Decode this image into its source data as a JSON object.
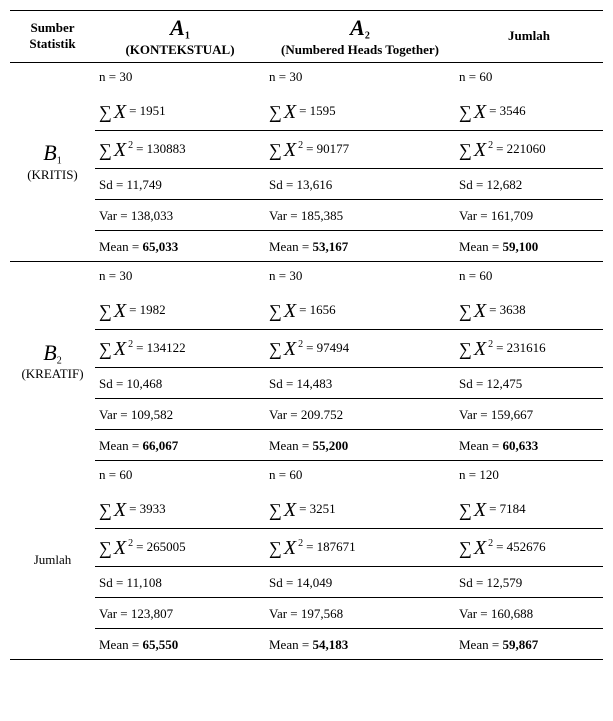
{
  "header": {
    "sumber_line1": "Sumber",
    "sumber_line2": "Statistik",
    "a1_symbol": "A",
    "a1_sub": "1",
    "a1_label": "(KONTEKSTUAL)",
    "a2_symbol": "A",
    "a2_sub": "2",
    "a2_label": "(Numbered Heads Together)",
    "jumlah": "Jumlah"
  },
  "b1": {
    "symbol": "B",
    "sub": "1",
    "label": "(KRITIS)",
    "a1": {
      "n": "n = 30",
      "sx": "= 1951",
      "sx2": "= 130883",
      "sd": "Sd = 11,749",
      "var": "Var = 138,033",
      "mean_lbl": "Mean = ",
      "mean_val": "65,033"
    },
    "a2": {
      "n": "n = 30",
      "sx": "= 1595",
      "sx2": "= 90177",
      "sd": "Sd = 13,616",
      "var": "Var =  185,385",
      "mean_lbl": "Mean = ",
      "mean_val": "53,167"
    },
    "j": {
      "n": "n = 60",
      "sx": "= 3546",
      "sx2": "= 221060",
      "sd": "Sd = 12,682",
      "var": "Var = 161,709",
      "mean_lbl": "Mean = ",
      "mean_val": "59,100"
    }
  },
  "b2": {
    "symbol": "B",
    "sub": "2",
    "label": "(KREATIF)",
    "a1": {
      "n": "n = 30",
      "sx": "= 1982",
      "sx2": "= 134122",
      "sd": "Sd = 10,468",
      "var": "Var = 109,582",
      "mean_lbl": "Mean = ",
      "mean_val": "66,067"
    },
    "a2": {
      "n": "n = 30",
      "sx": "= 1656",
      "sx2": "= 97494",
      "sd": "Sd = 14,483",
      "var": "Var = 209.752",
      "mean_lbl": "Mean = ",
      "mean_val": "55,200"
    },
    "j": {
      "n": "n = 60",
      "sx": "= 3638",
      "sx2": "= 231616",
      "sd": "Sd = 12,475",
      "var": "Var = 159,667",
      "mean_lbl": "Mean = ",
      "mean_val": "60,633"
    }
  },
  "jumlah": {
    "label": "Jumlah",
    "a1": {
      "n": "n = 60",
      "sx": "= 3933",
      "sx2": "= 265005",
      "sd": "Sd = 11,108",
      "var": "Var = 123,807",
      "mean_lbl": "Mean = ",
      "mean_val": "65,550"
    },
    "a2": {
      "n": "n = 60",
      "sx": "= 3251",
      "sx2": "= 187671",
      "sd": "Sd = 14,049",
      "var": "Var = 197,568",
      "mean_lbl": "Mean = ",
      "mean_val": "54,183"
    },
    "j": {
      "n": "n = 120",
      "sx": "= 7184",
      "sx2": "= 452676",
      "sd": "Sd = 12,579",
      "var": "Var = 160,688",
      "mean_lbl": "Mean = ",
      "mean_val": "59,867"
    }
  },
  "sym": {
    "sigma": "∑",
    "X": "X",
    "sq": "2"
  }
}
